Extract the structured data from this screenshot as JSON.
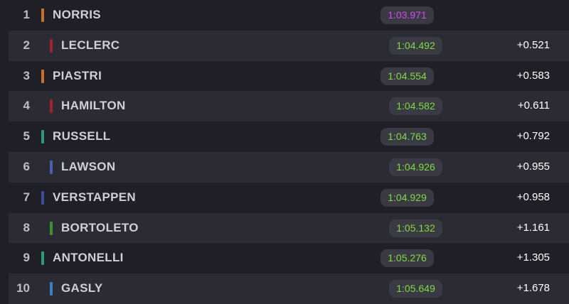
{
  "table": {
    "rows": [
      {
        "pos": "1",
        "name": "NORRIS",
        "time": "1:03.971"
      },
      {
        "pos": "2",
        "name": "LECLERC",
        "time": "1:04.492",
        "gap": "+0.521"
      },
      {
        "pos": "3",
        "name": "PIASTRI",
        "time": "1:04.554",
        "gap": "+0.583"
      },
      {
        "pos": "4",
        "name": "HAMILTON",
        "time": "1:04.582",
        "gap": "+0.611"
      },
      {
        "pos": "5",
        "name": "RUSSELL",
        "time": "1:04.763",
        "gap": "+0.792"
      },
      {
        "pos": "6",
        "name": "LAWSON",
        "time": "1:04.926",
        "gap": "+0.955"
      },
      {
        "pos": "7",
        "name": "VERSTAPPEN",
        "time": "1:04.929",
        "gap": "+0.958"
      },
      {
        "pos": "8",
        "name": "BORTOLETO",
        "time": "1:05.132",
        "gap": "+1.161"
      },
      {
        "pos": "9",
        "name": "ANTONELLI",
        "time": "1:05.276",
        "gap": "+1.305"
      },
      {
        "pos": "10",
        "name": "GASLY",
        "time": "1:05.649",
        "gap": "+1.678"
      }
    ]
  }
}
